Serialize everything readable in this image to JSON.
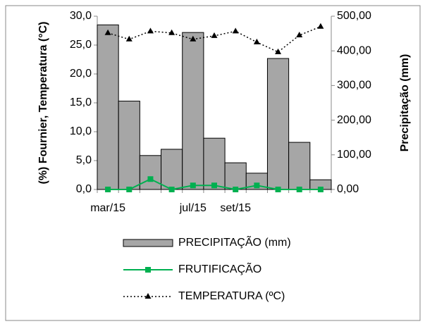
{
  "chart_data": {
    "type": "combo",
    "categories": [
      "mar/15",
      null,
      null,
      null,
      "jul/15",
      null,
      "set/15",
      null,
      null,
      null,
      null
    ],
    "ylabel": "(%) Fournier, Temperatura (°C)",
    "y2label": "Precipitação (mm)",
    "ylim": [
      0,
      30
    ],
    "yticks": [
      {
        "value": 0,
        "label": "0,0"
      },
      {
        "value": 5,
        "label": "5,0"
      },
      {
        "value": 10,
        "label": "10,0"
      },
      {
        "value": 15,
        "label": "15,0"
      },
      {
        "value": 20,
        "label": "20,0"
      },
      {
        "value": 25,
        "label": "25,0"
      },
      {
        "value": 30,
        "label": "30,0"
      }
    ],
    "y2lim": [
      0,
      500
    ],
    "y2ticks": [
      {
        "value": 0,
        "label": "0,00"
      },
      {
        "value": 100,
        "label": "100,00"
      },
      {
        "value": 200,
        "label": "200,00"
      },
      {
        "value": 300,
        "label": "300,00"
      },
      {
        "value": 400,
        "label": "400,00"
      },
      {
        "value": 500,
        "label": "500,00"
      }
    ],
    "legend": "bottom",
    "series": [
      {
        "name": "PRECIPITAÇÃO (mm)",
        "type": "bar",
        "axis": "y2",
        "color": "#a6a6a6",
        "values": [
          475,
          255,
          98,
          116,
          453,
          148,
          77,
          47,
          378,
          136,
          28
        ]
      },
      {
        "name": "FRUTIFICAÇÃO",
        "type": "line",
        "color": "#00b050",
        "marker": "square",
        "dash": "solid",
        "values": [
          0,
          0,
          1.8,
          0,
          0.7,
          0.7,
          0,
          0.7,
          0,
          0,
          0
        ]
      },
      {
        "name": "TEMPERATURA (ºC)",
        "type": "line",
        "color": "#000000",
        "marker": "triangle",
        "dash": "dotted",
        "values": [
          27.1,
          26.0,
          27.4,
          27.1,
          26.0,
          26.6,
          27.4,
          25.5,
          23.8,
          26.7,
          28.2
        ]
      }
    ]
  }
}
